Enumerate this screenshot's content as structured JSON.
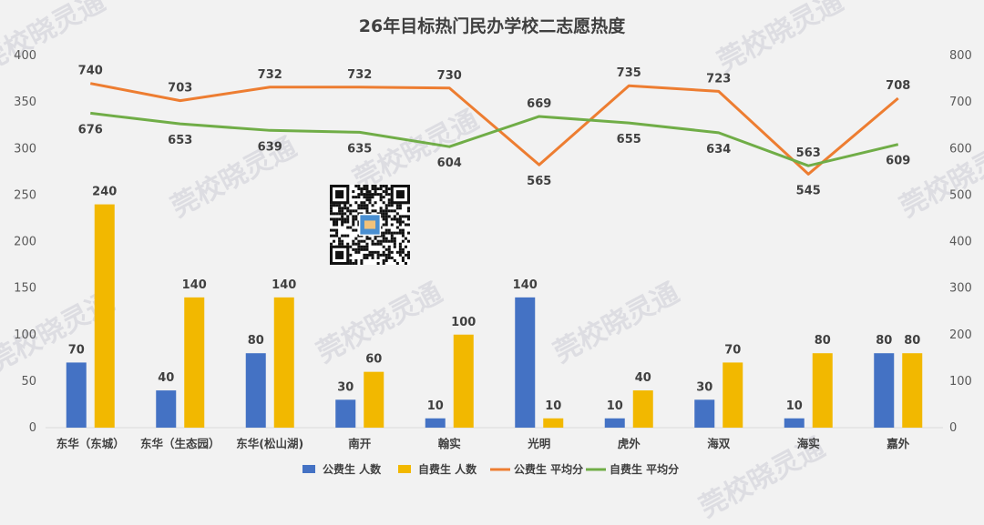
{
  "chart_data": {
    "type": "bar",
    "title": "26年目标热门民办学校二志愿热度",
    "categories": [
      "东华（东城）",
      "东华（生态园）",
      "东华(松山湖)",
      "南开",
      "翰实",
      "光明",
      "虎外",
      "海双",
      "海实",
      "嘉外"
    ],
    "series": [
      {
        "name": "公费生 人数",
        "type": "bar",
        "axis": "left",
        "color": "#4472c4",
        "values": [
          70,
          40,
          80,
          30,
          10,
          140,
          10,
          30,
          10,
          80
        ]
      },
      {
        "name": "自费生 人数",
        "type": "bar",
        "axis": "left",
        "color": "#f2b800",
        "values": [
          240,
          140,
          140,
          60,
          100,
          10,
          40,
          70,
          80,
          80
        ]
      },
      {
        "name": "公费生 平均分",
        "type": "line",
        "axis": "right",
        "color": "#ed7d31",
        "values": [
          740,
          703,
          732,
          732,
          730,
          565,
          735,
          723,
          545,
          708
        ]
      },
      {
        "name": "自费生 平均分",
        "type": "line",
        "axis": "right",
        "color": "#70ad47",
        "values": [
          676,
          653,
          639,
          635,
          604,
          669,
          655,
          634,
          563,
          609
        ]
      }
    ],
    "ylim_left": [
      0,
      400
    ],
    "yticks_left": [
      0,
      50,
      100,
      150,
      200,
      250,
      300,
      350,
      400
    ],
    "ylim_right": [
      0,
      800
    ],
    "yticks_right": [
      0,
      100,
      200,
      300,
      400,
      500,
      600,
      700,
      800
    ],
    "grid": false,
    "legend_position": "bottom"
  },
  "watermark": "莞校晓灵通"
}
